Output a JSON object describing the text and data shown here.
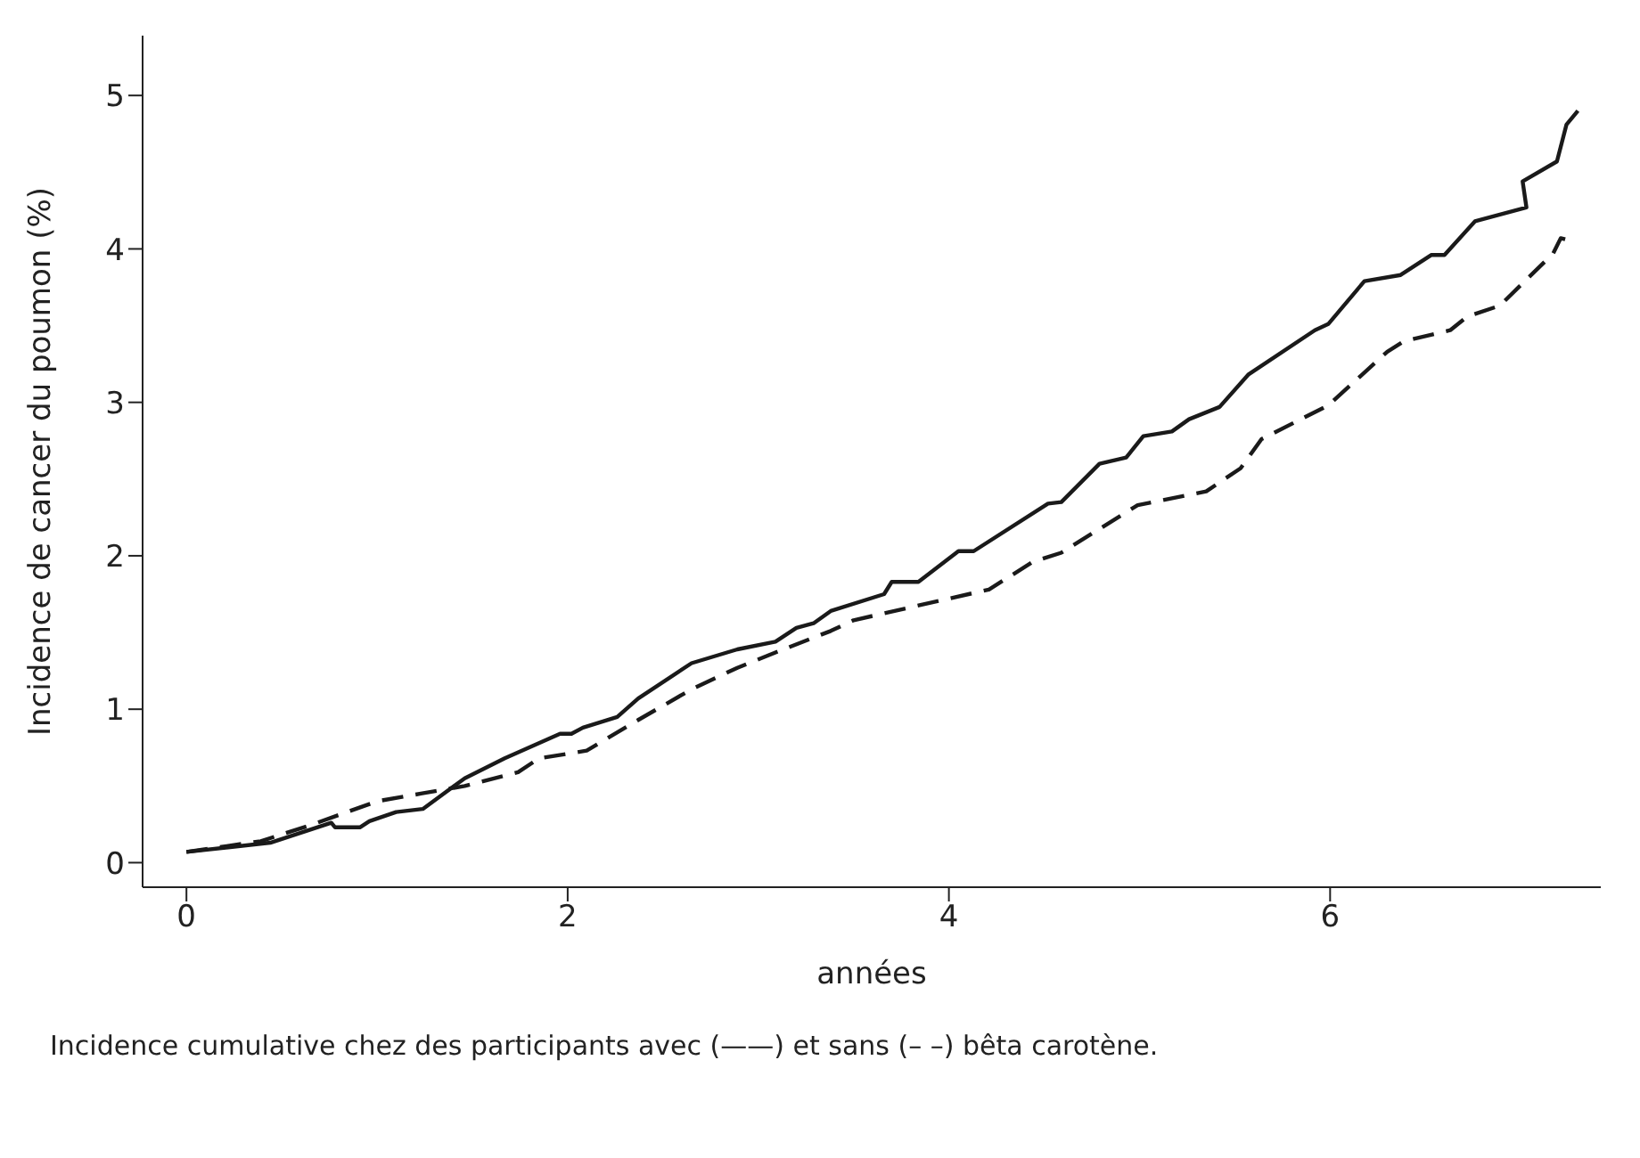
{
  "chart_data": {
    "type": "line",
    "xlabel": "années",
    "ylabel": "Incidence de cancer du poumon (%)",
    "annotations": [
      "Incidence cumulative chez des participants avec (——) et sans (– –) bêta carotène."
    ],
    "xlim": [
      -0.23,
      7.42
    ],
    "ylim": [
      -0.16,
      5.39
    ],
    "xticks": [
      0,
      2,
      4,
      6
    ],
    "yticks": [
      0,
      1,
      2,
      3,
      4,
      5
    ],
    "grid": false,
    "legend": false,
    "marker": "none",
    "series": [
      {
        "color": "#1a1a1a",
        "line_style": "solid",
        "x": [
          0,
          0.44,
          0.76,
          0.78,
          0.91,
          0.96,
          1.1,
          1.24,
          1.46,
          1.67,
          1.96,
          2.02,
          2.08,
          2.26,
          2.37,
          2.65,
          2.89,
          3.09,
          3.2,
          3.29,
          3.38,
          3.66,
          3.7,
          3.84,
          4.05,
          4.13,
          4.52,
          4.59,
          4.79,
          4.93,
          5.02,
          5.17,
          5.26,
          5.42,
          5.57,
          5.92,
          5.99,
          6.18,
          6.37,
          6.53,
          6.6,
          6.76,
          7.03,
          7.01,
          7.19,
          7.24,
          7.3
        ],
        "values": [
          0.07,
          0.13,
          0.26,
          0.23,
          0.23,
          0.27,
          0.33,
          0.35,
          0.55,
          0.68,
          0.84,
          0.84,
          0.88,
          0.95,
          1.07,
          1.3,
          1.39,
          1.44,
          1.53,
          1.56,
          1.64,
          1.75,
          1.83,
          1.83,
          2.03,
          2.03,
          2.34,
          2.35,
          2.6,
          2.64,
          2.78,
          2.81,
          2.89,
          2.97,
          3.18,
          3.47,
          3.51,
          3.79,
          3.83,
          3.96,
          3.96,
          4.18,
          4.27,
          4.44,
          4.57,
          4.81,
          4.9
        ]
      },
      {
        "color": "#1a1a1a",
        "line_style": "dashed",
        "x": [
          0,
          0.39,
          0.64,
          0.82,
          1.0,
          1.23,
          1.46,
          1.74,
          1.85,
          2.1,
          2.37,
          2.65,
          2.89,
          3.09,
          3.38,
          3.5,
          4.21,
          4.44,
          4.59,
          4.99,
          5.35,
          5.53,
          5.64,
          5.99,
          6.3,
          6.39,
          6.63,
          6.72,
          6.89,
          7.17,
          7.21,
          7.24
        ],
        "values": [
          0.07,
          0.14,
          0.24,
          0.32,
          0.4,
          0.45,
          0.5,
          0.59,
          0.68,
          0.73,
          0.93,
          1.13,
          1.27,
          1.37,
          1.51,
          1.58,
          1.78,
          1.96,
          2.02,
          2.33,
          2.42,
          2.57,
          2.76,
          2.98,
          3.33,
          3.4,
          3.47,
          3.56,
          3.63,
          3.97,
          4.07,
          4.06
        ]
      }
    ]
  }
}
